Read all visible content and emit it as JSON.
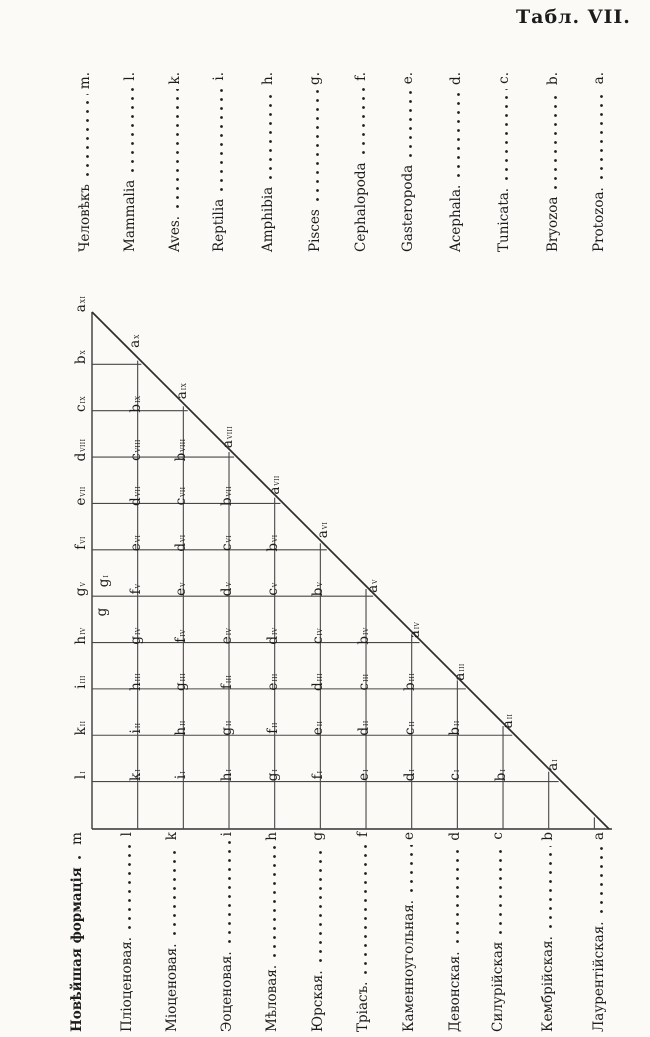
{
  "plate_title": "Табл. VII.",
  "taxa": [
    {
      "name": "Человѣкъ",
      "letter": "m."
    },
    {
      "name": "Mammalia",
      "letter": "l."
    },
    {
      "name": "Aves.",
      "letter": "k."
    },
    {
      "name": "Reptilia",
      "letter": "i."
    },
    {
      "name": "Amphibia",
      "letter": "h."
    },
    {
      "name": "Pisces",
      "letter": "g."
    },
    {
      "name": "Cephalopoda",
      "letter": "f."
    },
    {
      "name": "Gasteropoda",
      "letter": "e."
    },
    {
      "name": "Acephala.",
      "letter": "d."
    },
    {
      "name": "Tunicata.",
      "letter": "c."
    },
    {
      "name": "Bryozoa",
      "letter": "b."
    },
    {
      "name": "Protozoa.",
      "letter": "a."
    }
  ],
  "formations": [
    {
      "name": "Новѣйшая формація",
      "letter": "m",
      "bold": true
    },
    {
      "name": "Пліоценовая.",
      "letter": "l"
    },
    {
      "name": "Міоценовая.",
      "letter": "k"
    },
    {
      "name": "Эоценовая.",
      "letter": "i"
    },
    {
      "name": "Мѣловая.",
      "letter": "h"
    },
    {
      "name": "Юрская.",
      "letter": "g"
    },
    {
      "name": "Тріасъ.",
      "letter": "f"
    },
    {
      "name": "Каменноугольная.",
      "letter": "e"
    },
    {
      "name": "Девонская.",
      "letter": "d"
    },
    {
      "name": "Силурійская",
      "letter": "c"
    },
    {
      "name": "Кембрійская.",
      "letter": "b"
    },
    {
      "name": "Лаурентійская.",
      "letter": "a"
    }
  ],
  "grid_rows": [
    {
      "sup": "x",
      "cells": [
        "b"
      ]
    },
    {
      "sup": "ix",
      "cells": [
        "c",
        "b"
      ]
    },
    {
      "sup": "viii",
      "cells": [
        "d",
        "c",
        "b"
      ]
    },
    {
      "sup": "vii",
      "cells": [
        "e",
        "d",
        "c",
        "b"
      ]
    },
    {
      "sup": "vi",
      "cells": [
        "f",
        "e",
        "d",
        "c",
        "b"
      ]
    },
    {
      "sup": "v",
      "cells": [
        "g",
        "f",
        "e",
        "d",
        "c",
        "b"
      ]
    },
    {
      "sup": "iv",
      "cells": [
        "h",
        "g",
        "f",
        "e",
        "d",
        "c",
        "b"
      ]
    },
    {
      "sup": "iii",
      "cells": [
        "i",
        "h",
        "g",
        "f",
        "e",
        "d",
        "c",
        "b"
      ]
    },
    {
      "sup": "ii",
      "cells": [
        "k",
        "i",
        "h",
        "g",
        "f",
        "e",
        "d",
        "c",
        "b"
      ]
    },
    {
      "sup": "i",
      "cells": [
        "l",
        "k",
        "i",
        "h",
        "g",
        "f",
        "e",
        "d",
        "c",
        "b"
      ]
    }
  ],
  "diagonal_labels": [
    {
      "letter": "a",
      "sup": "xi"
    },
    {
      "letter": "a",
      "sup": "x"
    },
    {
      "letter": "a",
      "sup": "ix"
    },
    {
      "letter": "a",
      "sup": "viii"
    },
    {
      "letter": "a",
      "sup": "vii"
    },
    {
      "letter": "a",
      "sup": "vi"
    },
    {
      "letter": "a",
      "sup": "v"
    },
    {
      "letter": "a",
      "sup": "iv"
    },
    {
      "letter": "a",
      "sup": "iii"
    },
    {
      "letter": "a",
      "sup": "ii"
    },
    {
      "letter": "a",
      "sup": "i"
    }
  ],
  "extra_marks": [
    {
      "letter": "g",
      "sup": "i"
    },
    {
      "letter": "g",
      "sup": ""
    }
  ]
}
